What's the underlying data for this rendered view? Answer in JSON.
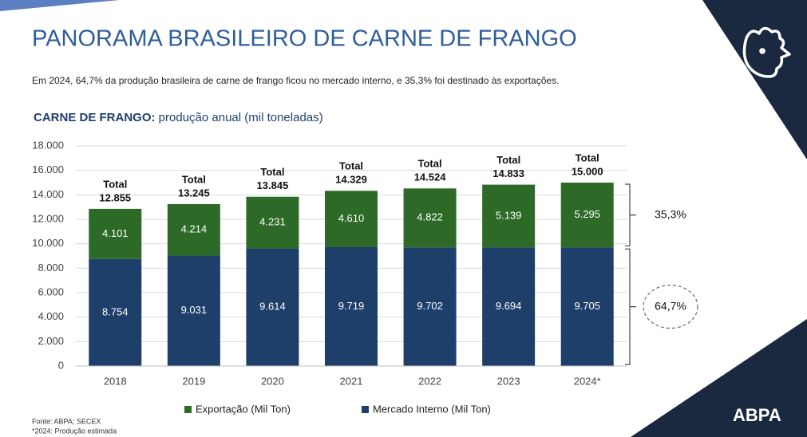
{
  "header": {
    "title": "PANORAMA BRASILEIRO DE CARNE DE FRANGO",
    "subtitle": "Em 2024, 64,7% da produção brasileira de carne de frango ficou no mercado interno, e 35,3% foi destinado às exportações."
  },
  "chart_data": {
    "type": "bar",
    "stacked": true,
    "title": "CARNE DE FRANGO:",
    "subtitle": "produção anual (mil toneladas)",
    "categories": [
      "2018",
      "2019",
      "2020",
      "2021",
      "2022",
      "2023",
      "2024*"
    ],
    "series": [
      {
        "name": "Exportação (Mil Ton)",
        "color": "#2d6a27",
        "share_label": "35,3%",
        "values": [
          4101,
          4214,
          4231,
          4610,
          4822,
          5139,
          5295
        ],
        "value_labels": [
          "4.101",
          "4.214",
          "4.231",
          "4.610",
          "4.822",
          "5.139",
          "5.295"
        ]
      },
      {
        "name": "Mercado Interno (Mil Ton)",
        "color": "#1f3f6b",
        "share_label": "64,7%",
        "values": [
          8754,
          9031,
          9614,
          9719,
          9702,
          9694,
          9705
        ],
        "value_labels": [
          "8.754",
          "9.031",
          "9.614",
          "9.719",
          "9.702",
          "9.694",
          "9.705"
        ]
      }
    ],
    "total_label": "Total",
    "totals": [
      12855,
      13245,
      13845,
      14329,
      14524,
      14833,
      15000
    ],
    "total_value_labels": [
      "12.855",
      "13.245",
      "13.845",
      "14.329",
      "14.524",
      "14.833",
      "15.000"
    ],
    "ylim": [
      0,
      18000
    ],
    "yticks": [
      {
        "value": 0,
        "label": "0"
      },
      {
        "value": 2000,
        "label": "2.000"
      },
      {
        "value": 4000,
        "label": "4.000"
      },
      {
        "value": 6000,
        "label": "6.000"
      },
      {
        "value": 8000,
        "label": "8.000"
      },
      {
        "value": 10000,
        "label": "10.000"
      },
      {
        "value": 12000,
        "label": "12.000"
      },
      {
        "value": 14000,
        "label": "14.000"
      },
      {
        "value": 16000,
        "label": "16.000"
      },
      {
        "value": 18000,
        "label": "18.000"
      }
    ],
    "grid": true,
    "legend": "bottom"
  },
  "footer": {
    "source": "Fonte: ABPA; SECEX",
    "note": "*2024: Produção estimada",
    "logo": "ABPA"
  }
}
